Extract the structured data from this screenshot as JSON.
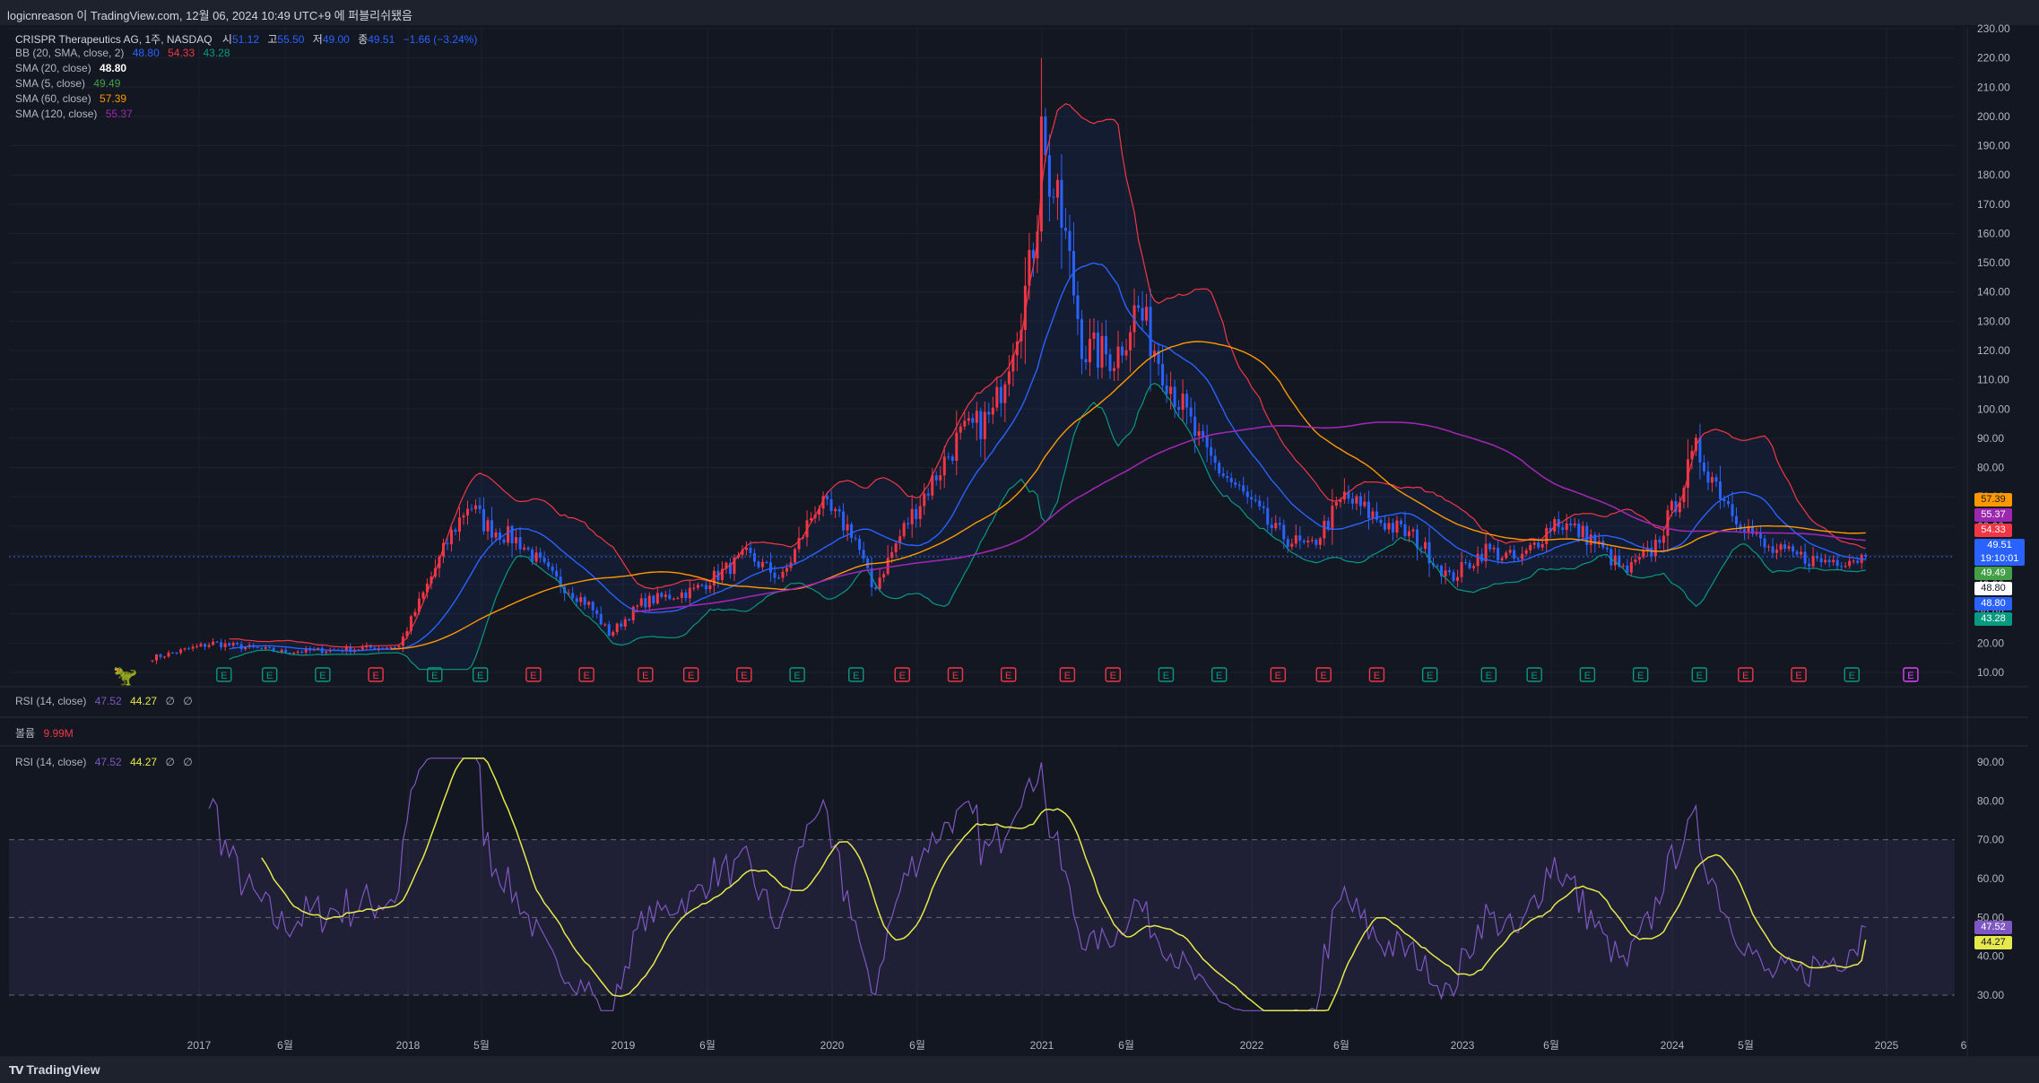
{
  "header": {
    "publish_text": "logicnreason 이 TradingView.com, 12월 06, 2024 10:49 UTC+9 에 퍼블리쉬됐음"
  },
  "footer": {
    "brand": "TradingView"
  },
  "legend": {
    "symbol": "CRISPR Therapeutics AG, 1주, NASDAQ",
    "open_label": "시",
    "open": "51.12",
    "high_label": "고",
    "high": "55.50",
    "low_label": "저",
    "low": "49.00",
    "close_label": "종",
    "close": "49.51",
    "change": "−1.66 (−3.24%)",
    "bb": {
      "label": "BB (20, SMA, close, 2)",
      "basis": "48.80",
      "upper": "54.33",
      "lower": "43.28"
    },
    "sma20": {
      "label": "SMA (20, close)",
      "value": "48.80"
    },
    "sma5": {
      "label": "SMA (5, close)",
      "value": "49.49"
    },
    "sma60": {
      "label": "SMA (60, close)",
      "value": "57.39"
    },
    "sma120": {
      "label": "SMA (120, close)",
      "value": "55.37"
    }
  },
  "rsi_pane_small": {
    "label": "RSI (14, close)",
    "rsi": "47.52",
    "ma": "44.27",
    "extra1": "∅",
    "extra2": "∅"
  },
  "volume_pane": {
    "label": "볼륨",
    "value": "9.99M"
  },
  "rsi_pane": {
    "label": "RSI (14, close)",
    "rsi": "47.52",
    "ma": "44.27",
    "extra1": "∅",
    "extra2": "∅"
  },
  "price_tags": {
    "sma60": "57.39",
    "sma120": "55.37",
    "bb_upper": "54.33",
    "last": "49.51",
    "countdown": "19:10:01",
    "sma5": "49.49",
    "bb_basis_white": "48.80",
    "sma20_blue": "48.80",
    "bb_lower": "43.28",
    "rsi": "47.52",
    "rsi_ma": "44.27"
  },
  "colors": {
    "background": "#131722",
    "candle_up": "#f23645",
    "candle_down": "#2962ff",
    "bb_upper": "#f23645",
    "bb_lower": "#089981",
    "bb_fill": "#2962ff",
    "sma20": "#2962ff",
    "sma5": "#43a047",
    "sma60": "#ff9800",
    "sma120": "#9c27b0",
    "rsi": "#7e57c2",
    "rsi_ma": "#e6e94b",
    "earnings_pos": "#089981",
    "earnings_neg": "#f23645"
  },
  "chart_data": [
    {
      "type": "candlestick",
      "title": "CRISPR Therapeutics AG, 1주, NASDAQ",
      "ylim": [
        10,
        230
      ],
      "y_ticks": [
        10,
        20,
        30,
        40,
        50,
        60,
        70,
        80,
        90,
        100,
        110,
        120,
        130,
        140,
        150,
        160,
        170,
        180,
        190,
        200,
        210,
        220,
        230
      ],
      "x_ticks": [
        "2017",
        "6월",
        "2018",
        "5월",
        "2019",
        "6월",
        "2020",
        "6월",
        "2021",
        "6월",
        "2022",
        "6월",
        "2023",
        "6월",
        "2024",
        "5월",
        "2025",
        "6"
      ],
      "x_start": "2016-10-19",
      "x_end": "2024-12-06",
      "close_keypoints": [
        [
          "2016-10-19",
          15
        ],
        [
          "2017-02-01",
          20
        ],
        [
          "2017-06-01",
          17
        ],
        [
          "2017-10-01",
          18
        ],
        [
          "2017-12-20",
          19
        ],
        [
          "2018-03-20",
          57
        ],
        [
          "2018-04-20",
          68
        ],
        [
          "2018-05-20",
          60
        ],
        [
          "2018-07-15",
          55
        ],
        [
          "2018-09-15",
          42
        ],
        [
          "2018-11-15",
          33
        ],
        [
          "2018-12-20",
          23
        ],
        [
          "2019-02-15",
          34
        ],
        [
          "2019-05-15",
          38
        ],
        [
          "2019-08-15",
          50
        ],
        [
          "2019-10-15",
          42
        ],
        [
          "2019-12-15",
          68
        ],
        [
          "2020-02-15",
          58
        ],
        [
          "2020-03-20",
          38
        ],
        [
          "2020-05-15",
          60
        ],
        [
          "2020-08-15",
          90
        ],
        [
          "2020-10-15",
          98
        ],
        [
          "2020-12-15",
          145
        ],
        [
          "2021-01-10",
          185
        ],
        [
          "2021-02-15",
          160
        ],
        [
          "2021-03-20",
          120
        ],
        [
          "2021-05-15",
          118
        ],
        [
          "2021-06-20",
          135
        ],
        [
          "2021-08-15",
          110
        ],
        [
          "2021-10-15",
          85
        ],
        [
          "2021-12-15",
          72
        ],
        [
          "2022-02-15",
          58
        ],
        [
          "2022-04-15",
          52
        ],
        [
          "2022-06-15",
          70
        ],
        [
          "2022-08-15",
          62
        ],
        [
          "2022-10-15",
          56
        ],
        [
          "2022-12-15",
          42
        ],
        [
          "2023-02-15",
          52
        ],
        [
          "2023-04-15",
          48
        ],
        [
          "2023-06-15",
          62
        ],
        [
          "2023-08-15",
          56
        ],
        [
          "2023-10-15",
          44
        ],
        [
          "2023-12-01",
          52
        ],
        [
          "2024-01-01",
          64
        ],
        [
          "2024-02-15",
          86
        ],
        [
          "2024-04-15",
          66
        ],
        [
          "2024-06-15",
          52
        ],
        [
          "2024-09-15",
          48
        ],
        [
          "2024-12-06",
          49.51
        ]
      ],
      "high_peak": 220,
      "earnings_markers": [
        [
          "2017-02-20",
          "pos"
        ],
        [
          "2017-05-10",
          "pos"
        ],
        [
          "2017-08-10",
          "pos"
        ],
        [
          "2017-11-10",
          "neg"
        ],
        [
          "2018-02-20",
          "pos"
        ],
        [
          "2018-05-10",
          "pos"
        ],
        [
          "2018-08-10",
          "neg"
        ],
        [
          "2018-11-10",
          "neg"
        ],
        [
          "2019-02-20",
          "neg"
        ],
        [
          "2019-05-10",
          "neg"
        ],
        [
          "2019-08-10",
          "neg"
        ],
        [
          "2019-11-10",
          "pos"
        ],
        [
          "2020-02-20",
          "pos"
        ],
        [
          "2020-05-10",
          "neg"
        ],
        [
          "2020-08-10",
          "neg"
        ],
        [
          "2020-11-10",
          "neg"
        ],
        [
          "2021-02-20",
          "neg"
        ],
        [
          "2021-05-10",
          "neg"
        ],
        [
          "2021-08-10",
          "pos"
        ],
        [
          "2021-11-10",
          "pos"
        ],
        [
          "2022-02-20",
          "neg"
        ],
        [
          "2022-05-10",
          "neg"
        ],
        [
          "2022-08-10",
          "neg"
        ],
        [
          "2022-11-10",
          "pos"
        ],
        [
          "2023-02-20",
          "pos"
        ],
        [
          "2023-05-10",
          "pos"
        ],
        [
          "2023-08-10",
          "pos"
        ],
        [
          "2023-11-10",
          "pos"
        ],
        [
          "2024-02-20",
          "pos"
        ],
        [
          "2024-05-10",
          "neg"
        ],
        [
          "2024-08-10",
          "neg"
        ],
        [
          "2024-11-10",
          "pos"
        ],
        [
          "2025-02-20",
          "future"
        ]
      ]
    },
    {
      "type": "line",
      "title": "RSI (14, close)",
      "ylim": [
        25,
        92
      ],
      "y_ticks": [
        30,
        40,
        50,
        60,
        70,
        80,
        90
      ],
      "bands": [
        30,
        50,
        70
      ],
      "series": [
        {
          "name": "RSI",
          "last": 47.52
        },
        {
          "name": "RSI MA",
          "last": 44.27
        }
      ]
    }
  ]
}
